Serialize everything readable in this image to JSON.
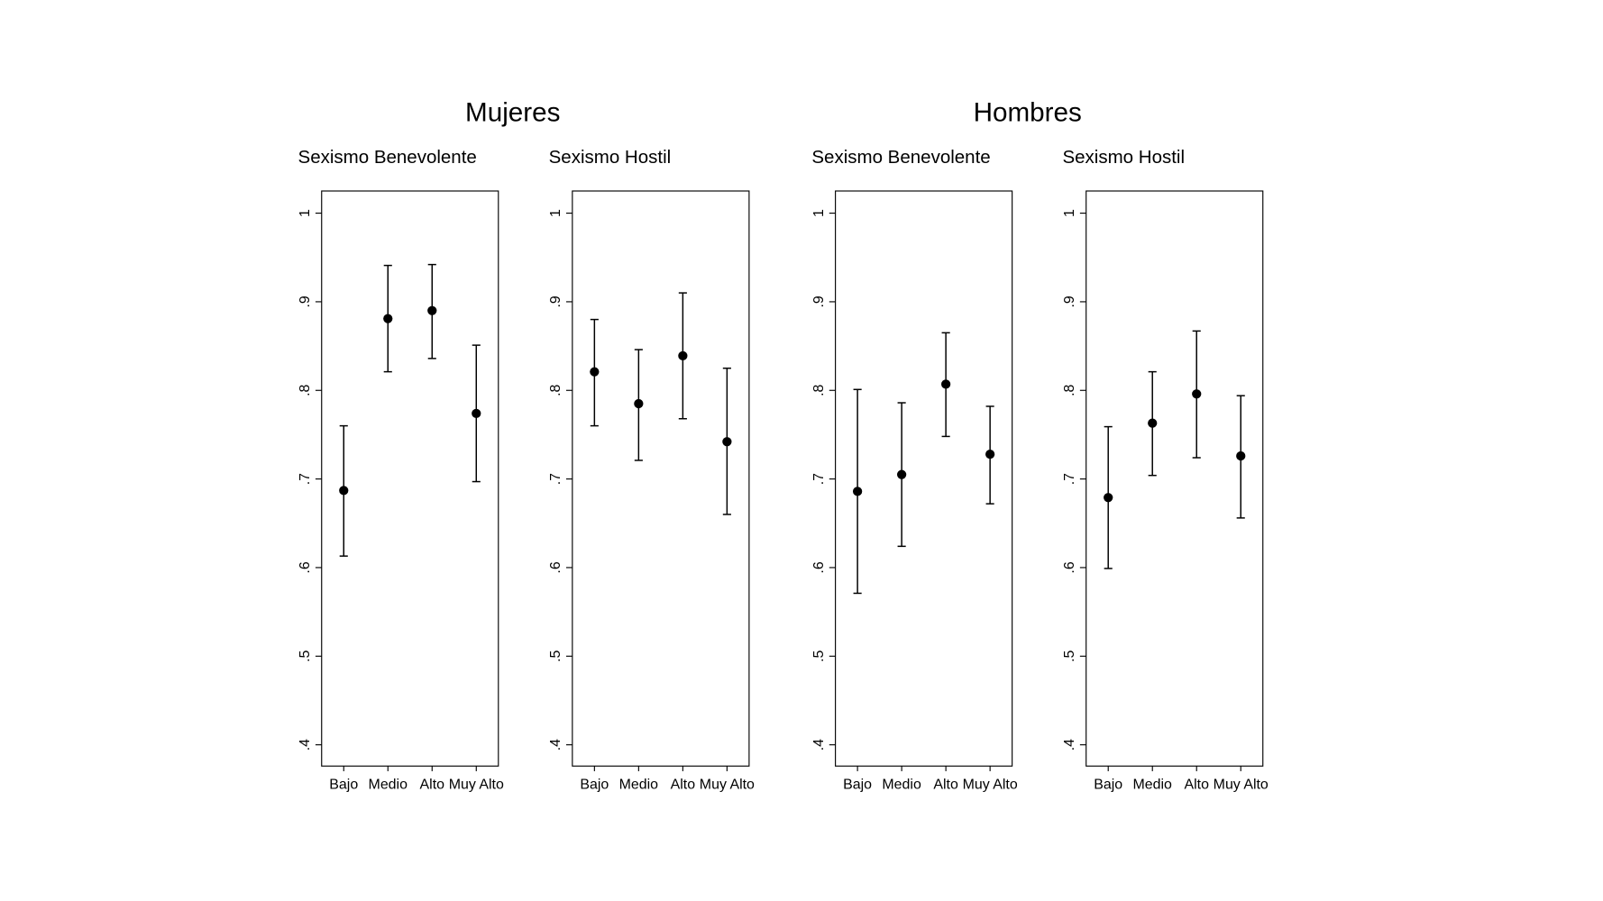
{
  "headings": [
    "Mujeres",
    "Hombres"
  ],
  "chart_data": [
    {
      "type": "errorbar",
      "title": "Sexismo Benevolente",
      "color": "#000000",
      "categories": [
        "Bajo",
        "Medio",
        "Alto",
        "Muy Alto"
      ],
      "values": [
        0.687,
        0.881,
        0.89,
        0.774
      ],
      "lower": [
        0.613,
        0.821,
        0.836,
        0.697
      ],
      "upper": [
        0.76,
        0.941,
        0.942,
        0.851
      ],
      "ylim": [
        0.376,
        1.025
      ],
      "yticks": [
        {
          "value": 0.4,
          "label": ".4"
        },
        {
          "value": 0.5,
          "label": ".5"
        },
        {
          "value": 0.6,
          "label": ".6"
        },
        {
          "value": 0.7,
          "label": ".7"
        },
        {
          "value": 0.8,
          "label": ".8"
        },
        {
          "value": 0.9,
          "label": ".9"
        },
        1
      ]
    },
    {
      "type": "errorbar",
      "title": "Sexismo Hostil",
      "color": "#000000",
      "categories": [
        "Bajo",
        "Medio",
        "Alto",
        "Muy Alto"
      ],
      "values": [
        0.821,
        0.785,
        0.839,
        0.742
      ],
      "lower": [
        0.76,
        0.721,
        0.768,
        0.66
      ],
      "upper": [
        0.88,
        0.846,
        0.91,
        0.825
      ],
      "ylim": [
        0.376,
        1.025
      ],
      "yticks": [
        {
          "value": 0.4,
          "label": ".4"
        },
        {
          "value": 0.5,
          "label": ".5"
        },
        {
          "value": 0.6,
          "label": ".6"
        },
        {
          "value": 0.7,
          "label": ".7"
        },
        {
          "value": 0.8,
          "label": ".8"
        },
        {
          "value": 0.9,
          "label": ".9"
        },
        1
      ]
    },
    {
      "type": "errorbar",
      "title": "Sexismo Benevolente",
      "color": "#000000",
      "categories": [
        "Bajo",
        "Medio",
        "Alto",
        "Muy Alto"
      ],
      "values": [
        0.686,
        0.705,
        0.807,
        0.728
      ],
      "lower": [
        0.571,
        0.624,
        0.748,
        0.672
      ],
      "upper": [
        0.801,
        0.786,
        0.865,
        0.782
      ],
      "ylim": [
        0.376,
        1.025
      ],
      "yticks": [
        {
          "value": 0.4,
          "label": ".4"
        },
        {
          "value": 0.5,
          "label": ".5"
        },
        {
          "value": 0.6,
          "label": ".6"
        },
        {
          "value": 0.7,
          "label": ".7"
        },
        {
          "value": 0.8,
          "label": ".8"
        },
        {
          "value": 0.9,
          "label": ".9"
        },
        1
      ]
    },
    {
      "type": "errorbar",
      "title": "Sexismo Hostil",
      "color": "#000000",
      "categories": [
        "Bajo",
        "Medio",
        "Alto",
        "Muy Alto"
      ],
      "values": [
        0.679,
        0.763,
        0.796,
        0.726
      ],
      "lower": [
        0.599,
        0.704,
        0.724,
        0.656
      ],
      "upper": [
        0.759,
        0.821,
        0.867,
        0.794
      ],
      "ylim": [
        0.376,
        1.025
      ],
      "yticks": [
        {
          "value": 0.4,
          "label": ".4"
        },
        {
          "value": 0.5,
          "label": ".5"
        },
        {
          "value": 0.6,
          "label": ".6"
        },
        {
          "value": 0.7,
          "label": ".7"
        },
        {
          "value": 0.8,
          "label": ".8"
        },
        {
          "value": 0.9,
          "label": ".9"
        },
        1
      ]
    }
  ]
}
